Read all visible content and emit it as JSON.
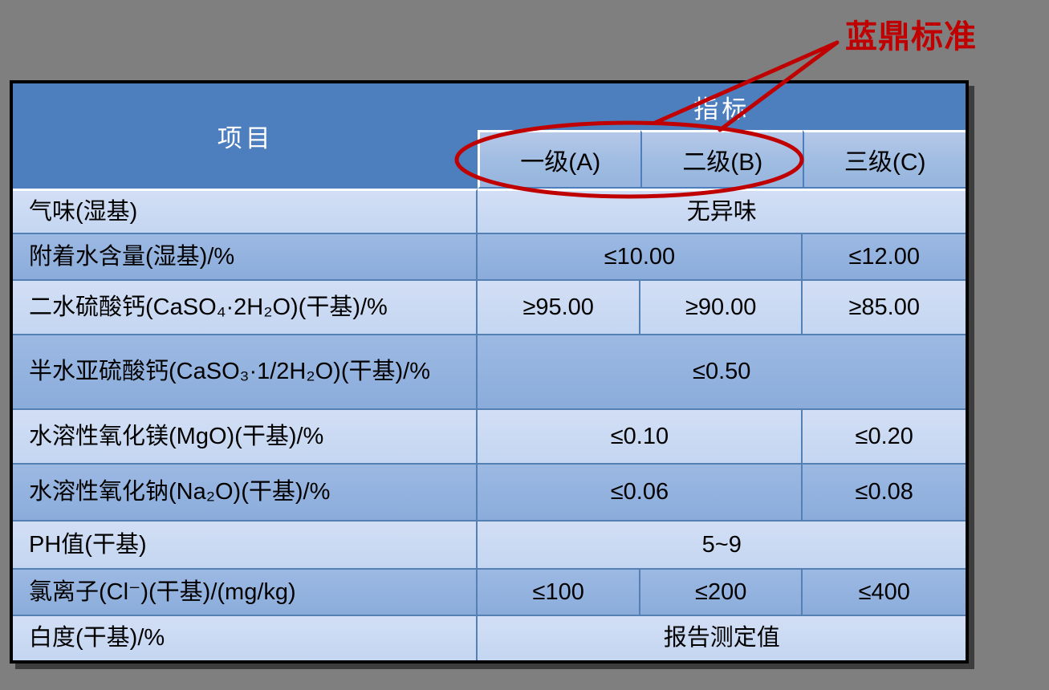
{
  "annotation": {
    "label": "蓝鼎标准"
  },
  "colors": {
    "accent_red": "#c00000",
    "header_blue": "#4d7ebd",
    "row_light": "#c9daf3",
    "row_band": "#93b2de",
    "grid_line": "#5580b4",
    "background": "#7f7f7f"
  },
  "table": {
    "header": {
      "item_label": "项目",
      "indicator_label": "指标",
      "grades": [
        "一级(A)",
        "二级(B)",
        "三级(C)"
      ]
    },
    "rows": [
      {
        "item": "气味(湿基)",
        "values": [
          {
            "text": "无异味",
            "span": 3
          }
        ]
      },
      {
        "item": "附着水含量(湿基)/%",
        "values": [
          {
            "text": "≤10.00",
            "span": 2
          },
          {
            "text": "≤12.00",
            "span": 1
          }
        ]
      },
      {
        "item": "二水硫酸钙(CaSO₄·2H₂O)(干基)/%",
        "values": [
          {
            "text": "≥95.00",
            "span": 1
          },
          {
            "text": "≥90.00",
            "span": 1
          },
          {
            "text": "≥85.00",
            "span": 1
          }
        ]
      },
      {
        "item": "半水亚硫酸钙(CaSO₃·1/2H₂O)(干基)/%",
        "values": [
          {
            "text": "≤0.50",
            "span": 3
          }
        ]
      },
      {
        "item": "水溶性氧化镁(MgO)(干基)/%",
        "values": [
          {
            "text": "≤0.10",
            "span": 2
          },
          {
            "text": "≤0.20",
            "span": 1
          }
        ]
      },
      {
        "item": "水溶性氧化钠(Na₂O)(干基)/%",
        "values": [
          {
            "text": "≤0.06",
            "span": 2
          },
          {
            "text": "≤0.08",
            "span": 1
          }
        ]
      },
      {
        "item": "PH值(干基)",
        "values": [
          {
            "text": "5~9",
            "span": 3
          }
        ]
      },
      {
        "item": "氯离子(Cl⁻)(干基)/(mg/kg)",
        "values": [
          {
            "text": "≤100",
            "span": 1
          },
          {
            "text": "≤200",
            "span": 1
          },
          {
            "text": "≤400",
            "span": 1
          }
        ]
      },
      {
        "item": "白度(干基)/%",
        "values": [
          {
            "text": "报告测定值",
            "span": 3
          }
        ]
      }
    ]
  }
}
